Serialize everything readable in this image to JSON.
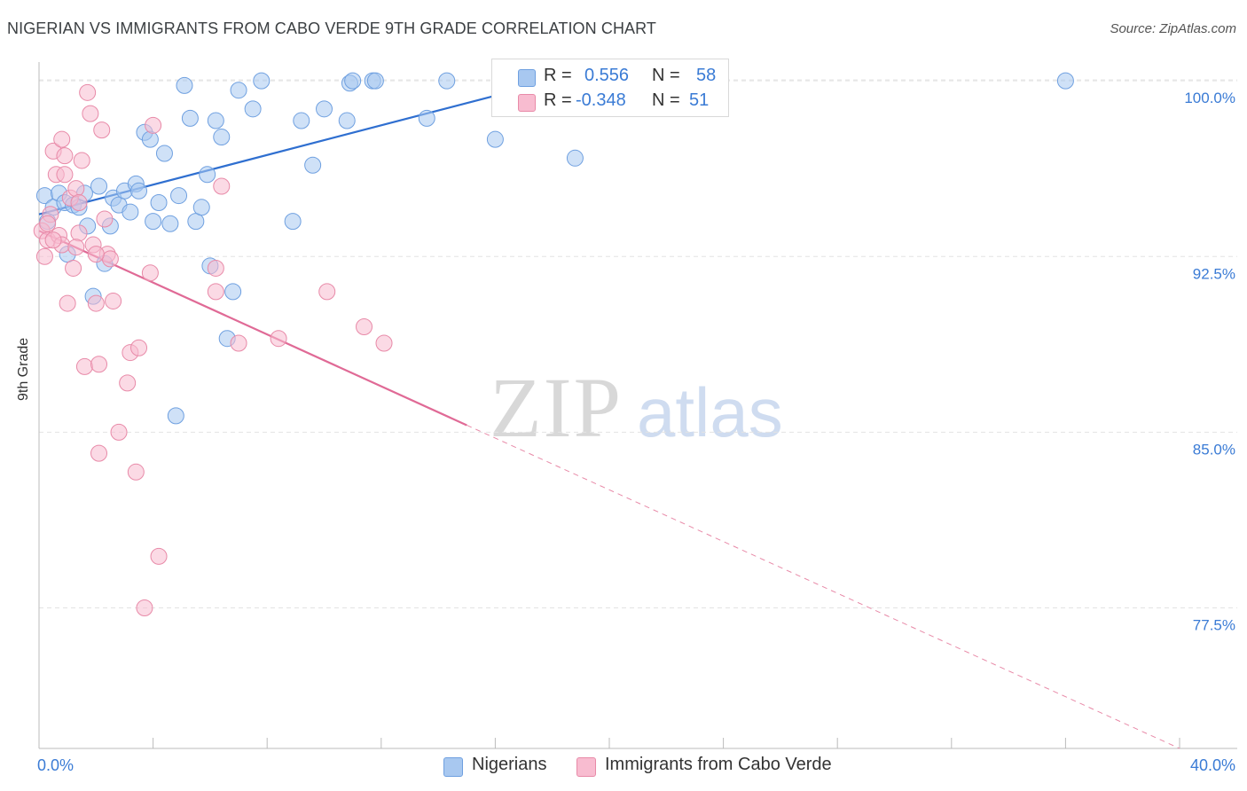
{
  "header": {
    "title": "NIGERIAN VS IMMIGRANTS FROM CABO VERDE 9TH GRADE CORRELATION CHART",
    "source": "Source: ZipAtlas.com"
  },
  "watermark": {
    "zip": "ZIP",
    "atlas": "atlas"
  },
  "legend": {
    "r_label": "R =",
    "n_label": "N =",
    "rows": [
      {
        "r": "0.556",
        "n": "58",
        "color": "#a8c8f0",
        "border": "#6fa0e0"
      },
      {
        "r": "-0.348",
        "n": "51",
        "color": "#f8bcd0",
        "border": "#e88aa8"
      }
    ]
  },
  "chart_data": {
    "type": "scatter",
    "title": "NIGERIAN VS IMMIGRANTS FROM CABO VERDE 9TH GRADE CORRELATION CHART",
    "xlabel": "",
    "ylabel": "9th Grade",
    "xlim": [
      0,
      40
    ],
    "ylim": [
      71.5,
      100.8
    ],
    "x_tick_labels": [
      "0.0%",
      "40.0%"
    ],
    "y_ticks": [
      100,
      92.5,
      85,
      77.5
    ],
    "y_tick_labels": [
      "100.0%",
      "92.5%",
      "85.0%",
      "77.5%"
    ],
    "grid": true,
    "legend_placement": "bottom",
    "series": [
      {
        "name": "Nigerians",
        "color": "#6fa0e0",
        "fill": "#a8c8f0",
        "trend": {
          "x": [
            0,
            18
          ],
          "y": [
            94.3,
            100.0
          ]
        },
        "points": [
          [
            0.2,
            95.1
          ],
          [
            0.3,
            94.0
          ],
          [
            0.5,
            94.6
          ],
          [
            0.7,
            95.2
          ],
          [
            0.9,
            94.8
          ],
          [
            1.0,
            92.6
          ],
          [
            1.2,
            94.7
          ],
          [
            1.4,
            94.6
          ],
          [
            1.6,
            95.2
          ],
          [
            1.7,
            93.8
          ],
          [
            1.9,
            90.8
          ],
          [
            2.1,
            95.5
          ],
          [
            2.3,
            92.2
          ],
          [
            2.5,
            93.8
          ],
          [
            2.6,
            95.0
          ],
          [
            2.8,
            94.7
          ],
          [
            3.0,
            95.3
          ],
          [
            3.2,
            94.4
          ],
          [
            3.4,
            95.6
          ],
          [
            3.5,
            95.3
          ],
          [
            3.7,
            97.8
          ],
          [
            3.9,
            97.5
          ],
          [
            4.0,
            94.0
          ],
          [
            4.2,
            94.8
          ],
          [
            4.4,
            96.9
          ],
          [
            4.6,
            93.9
          ],
          [
            4.9,
            95.1
          ],
          [
            5.1,
            99.8
          ],
          [
            5.3,
            98.4
          ],
          [
            5.5,
            94.0
          ],
          [
            5.7,
            94.6
          ],
          [
            5.9,
            96.0
          ],
          [
            6.0,
            92.1
          ],
          [
            6.2,
            98.3
          ],
          [
            6.4,
            97.6
          ],
          [
            6.6,
            89.0
          ],
          [
            6.8,
            91.0
          ],
          [
            7.0,
            99.6
          ],
          [
            7.5,
            98.8
          ],
          [
            7.8,
            100.0
          ],
          [
            8.9,
            94.0
          ],
          [
            9.2,
            98.3
          ],
          [
            9.6,
            96.4
          ],
          [
            10.0,
            98.8
          ],
          [
            10.8,
            98.3
          ],
          [
            10.9,
            99.9
          ],
          [
            11.0,
            100.0
          ],
          [
            11.7,
            100.0
          ],
          [
            11.8,
            100.0
          ],
          [
            13.6,
            98.4
          ],
          [
            14.3,
            100.0
          ],
          [
            16.0,
            97.5
          ],
          [
            16.4,
            100.0
          ],
          [
            17.2,
            100.0
          ],
          [
            18.8,
            96.7
          ],
          [
            19.5,
            99.0
          ],
          [
            36.0,
            100.0
          ],
          [
            4.8,
            85.7
          ]
        ]
      },
      {
        "name": "Immigrants from Cabo Verde",
        "color": "#e88aa8",
        "fill": "#f8bcd0",
        "trend": {
          "x": [
            0,
            15
          ],
          "y": [
            93.6,
            85.3
          ]
        },
        "trend_dashed": {
          "x": [
            15,
            40
          ],
          "y": [
            85.3,
            71.5
          ]
        },
        "points": [
          [
            0.1,
            93.6
          ],
          [
            0.2,
            92.5
          ],
          [
            0.3,
            93.2
          ],
          [
            0.4,
            94.3
          ],
          [
            0.5,
            97.0
          ],
          [
            0.6,
            96.0
          ],
          [
            0.7,
            93.4
          ],
          [
            0.8,
            97.5
          ],
          [
            0.8,
            93.0
          ],
          [
            0.9,
            96.8
          ],
          [
            1.0,
            90.5
          ],
          [
            1.1,
            95.0
          ],
          [
            1.2,
            92.0
          ],
          [
            1.3,
            95.4
          ],
          [
            1.4,
            94.8
          ],
          [
            1.4,
            93.5
          ],
          [
            1.5,
            96.6
          ],
          [
            1.6,
            87.8
          ],
          [
            1.7,
            99.5
          ],
          [
            1.8,
            98.6
          ],
          [
            1.9,
            93.0
          ],
          [
            2.0,
            90.5
          ],
          [
            2.1,
            87.9
          ],
          [
            2.1,
            84.1
          ],
          [
            2.2,
            97.9
          ],
          [
            2.3,
            94.1
          ],
          [
            2.4,
            92.6
          ],
          [
            2.5,
            92.4
          ],
          [
            2.8,
            85.0
          ],
          [
            3.1,
            87.1
          ],
          [
            3.2,
            88.4
          ],
          [
            3.4,
            83.3
          ],
          [
            3.5,
            88.6
          ],
          [
            3.7,
            77.5
          ],
          [
            3.9,
            91.8
          ],
          [
            4.0,
            98.1
          ],
          [
            4.2,
            79.7
          ],
          [
            6.2,
            92.0
          ],
          [
            6.2,
            91.0
          ],
          [
            6.4,
            95.5
          ],
          [
            7.0,
            88.8
          ],
          [
            8.4,
            89.0
          ],
          [
            10.1,
            91.0
          ],
          [
            11.4,
            89.5
          ],
          [
            12.1,
            88.8
          ],
          [
            0.3,
            93.9
          ],
          [
            0.5,
            93.2
          ],
          [
            0.9,
            96.0
          ],
          [
            1.3,
            92.9
          ],
          [
            2.0,
            92.6
          ],
          [
            2.6,
            90.6
          ]
        ]
      }
    ]
  }
}
